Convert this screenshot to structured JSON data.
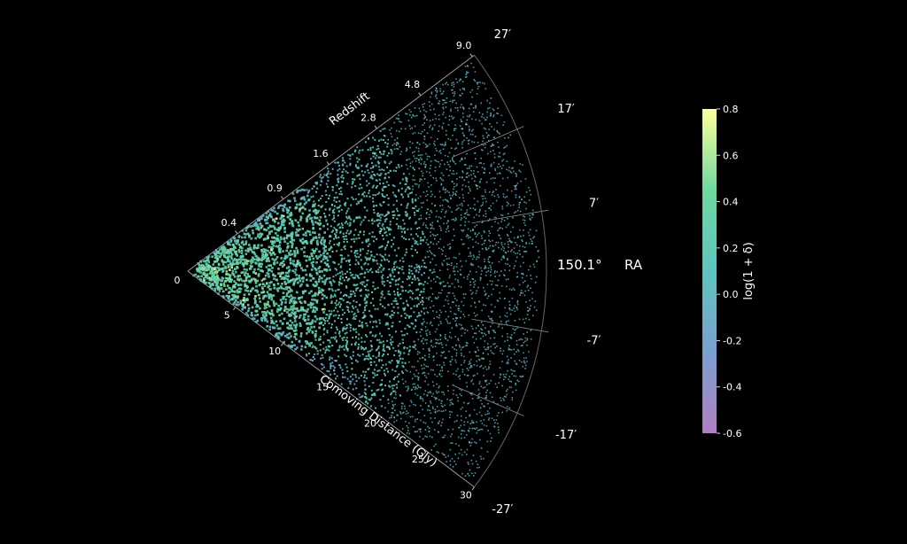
{
  "chart_data": {
    "type": "scatter",
    "subtype": "polar-wedge",
    "title": "",
    "radial_axis": {
      "label": "Comoving Distance (Gly)",
      "ticks": [
        0,
        5,
        10,
        15,
        20,
        25,
        30
      ],
      "range": [
        0,
        30
      ]
    },
    "redshift_axis": {
      "label": "Redshift",
      "ticks": [
        {
          "label": "0.4",
          "distance": 5.2
        },
        {
          "label": "0.9",
          "distance": 10.0
        },
        {
          "label": "1.6",
          "distance": 14.8
        },
        {
          "label": "2.8",
          "distance": 19.8
        },
        {
          "label": "4.8",
          "distance": 24.4
        },
        {
          "label": "9.0",
          "distance": 29.8
        }
      ]
    },
    "angular_axis": {
      "label": "RA",
      "center_label": "150.1°",
      "ticks": [
        {
          "label": "27′",
          "offset_arcmin": 27
        },
        {
          "label": "17′",
          "offset_arcmin": 17
        },
        {
          "label": "7′",
          "offset_arcmin": 7
        },
        {
          "label": "-7′",
          "offset_arcmin": -7
        },
        {
          "label": "-17′",
          "offset_arcmin": -17
        },
        {
          "label": "-27′",
          "offset_arcmin": -27
        }
      ],
      "range_arcmin": [
        -27,
        27
      ]
    },
    "colorbar": {
      "label": "log(1 + δ)",
      "ticks": [
        0.8,
        0.6,
        0.4,
        0.2,
        0.0,
        -0.2,
        -0.4,
        -0.6
      ],
      "tick_labels": [
        "0.8",
        "0.6",
        "0.4",
        "0.2",
        "0.0",
        "-0.2",
        "-0.4",
        "-0.6"
      ],
      "range": [
        -0.6,
        0.8
      ],
      "colormap": "viridis"
    },
    "colors": {
      "background": "#000000",
      "grid": "#555555",
      "colormap_stops": [
        "#b07fc0",
        "#7aa0d0",
        "#5fc4c0",
        "#70d8a0",
        "#ffff9e"
      ]
    }
  }
}
